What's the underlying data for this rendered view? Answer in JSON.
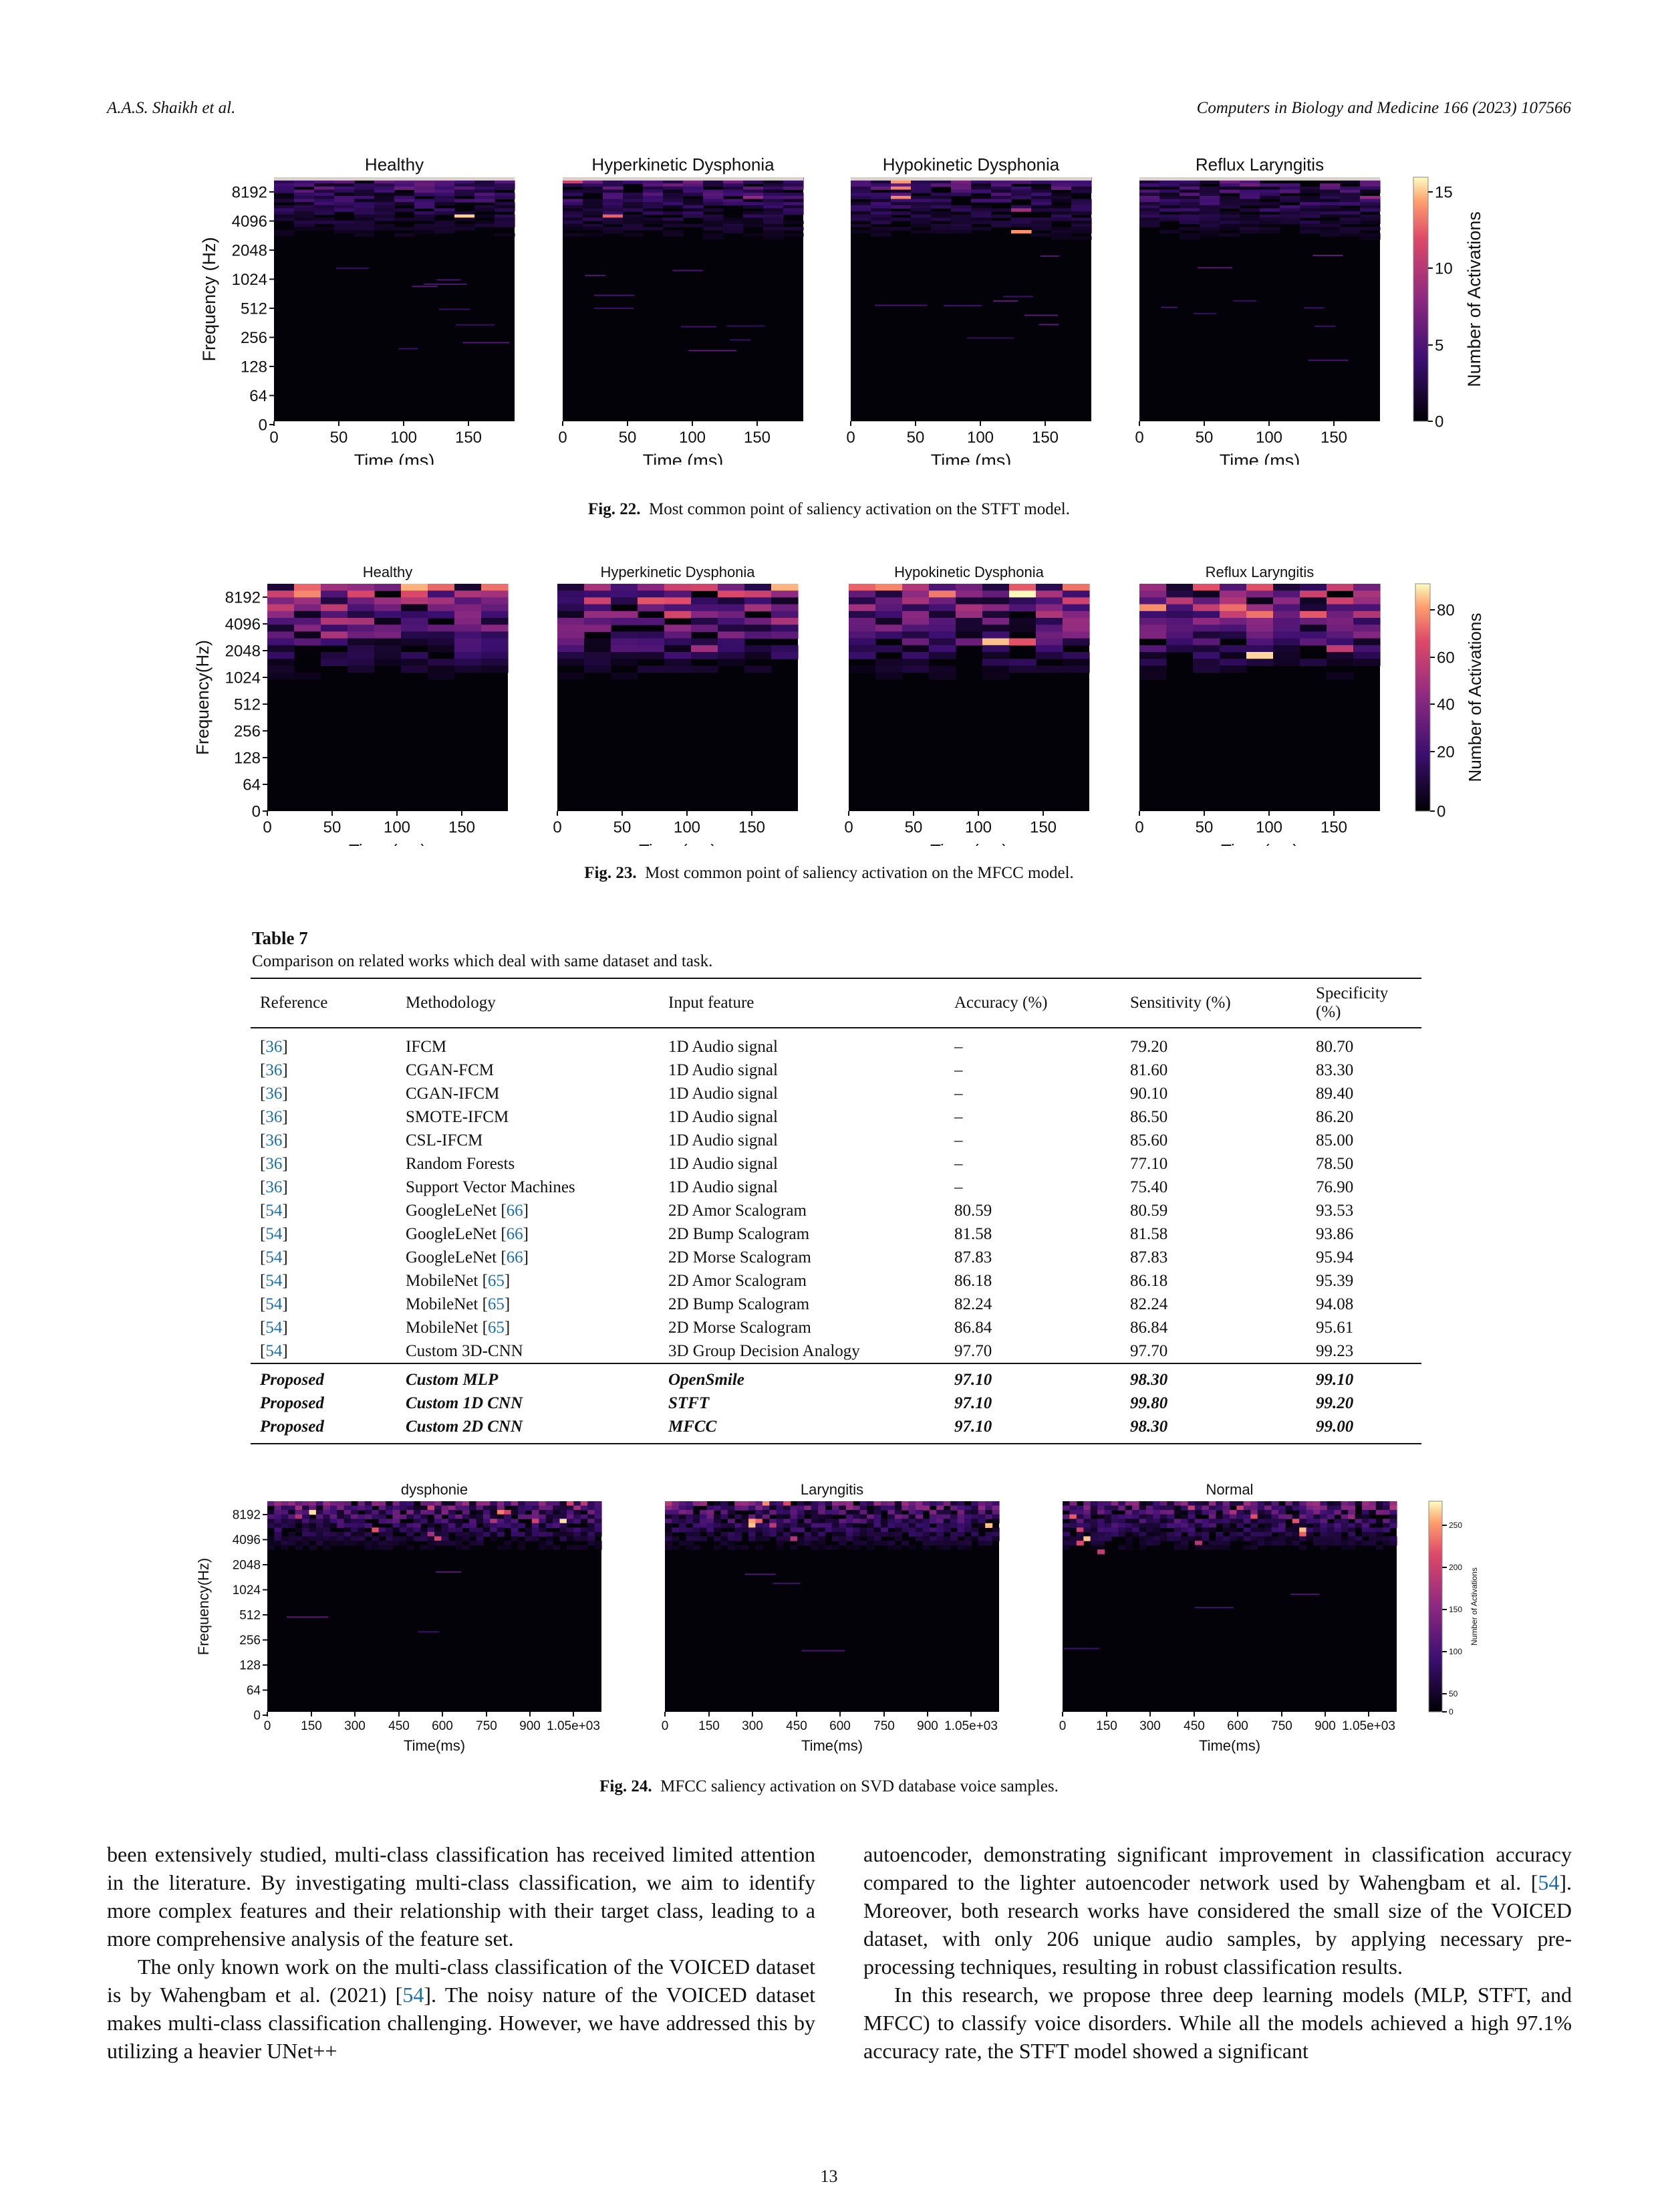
{
  "header": {
    "authors": "A.A.S. Shaikh et al.",
    "journal": "Computers in Biology and Medicine 166 (2023) 107566"
  },
  "fig22": {
    "caption_label": "Fig. 22.",
    "caption_text": "Most common point of saliency activation on the STFT model.",
    "panels": [
      "Healthy",
      "Hyperkinetic Dysphonia",
      "Hypokinetic Dysphonia",
      "Reflux Laryngitis"
    ],
    "ylabel": "Frequency (Hz)",
    "xlabel": "Time (ms)",
    "yticks": [
      "8192",
      "4096",
      "2048",
      "1024",
      "512",
      "256",
      "128",
      "64",
      "0"
    ],
    "xticks": [
      "0",
      "50",
      "100",
      "150"
    ],
    "colorbar_label": "Number of Activations",
    "colorbar_ticks": [
      "15",
      "10",
      "5",
      "0"
    ]
  },
  "fig23": {
    "caption_label": "Fig. 23.",
    "caption_text": "Most common point of saliency activation on the MFCC model.",
    "panels": [
      "Healthy",
      "Hyperkinetic Dysphonia",
      "Hypokinetic Dysphonia",
      "Reflux Laryngitis"
    ],
    "ylabel": "Frequency(Hz)",
    "xlabel": "Time (ms)",
    "yticks": [
      "8192",
      "4096",
      "2048",
      "1024",
      "512",
      "256",
      "128",
      "64",
      "0"
    ],
    "xticks": [
      "0",
      "50",
      "100",
      "150"
    ],
    "colorbar_label": "Number of Activations",
    "colorbar_ticks": [
      "80",
      "60",
      "40",
      "20",
      "0"
    ]
  },
  "fig24": {
    "caption_label": "Fig. 24.",
    "caption_text": "MFCC saliency activation on SVD database voice samples.",
    "panels": [
      "dysphonie",
      "Laryngitis",
      "Normal"
    ],
    "ylabel": "Frequency(Hz)",
    "xlabel": "Time(ms)",
    "yticks": [
      "8192",
      "4096",
      "2048",
      "1024",
      "512",
      "256",
      "128",
      "64",
      "0"
    ],
    "xticks": [
      "0",
      "150",
      "300",
      "450",
      "600",
      "750",
      "900",
      "1.05e+03"
    ],
    "colorbar_label": "Number of Activations",
    "colorbar_ticks": [
      "250",
      "200",
      "150",
      "100",
      "50",
      "0"
    ]
  },
  "table7": {
    "title": "Table 7",
    "subtitle": "Comparison on related works which deal with same dataset and task.",
    "headers": [
      "Reference",
      "Methodology",
      "Input feature",
      "Accuracy (%)",
      "Sensitivity (%)",
      "Specificity (%)"
    ],
    "rows": [
      [
        "36",
        "IFCM",
        "",
        "1D Audio signal",
        "–",
        "79.20",
        "80.70"
      ],
      [
        "36",
        "CGAN-FCM",
        "",
        "1D Audio signal",
        "–",
        "81.60",
        "83.30"
      ],
      [
        "36",
        "CGAN-IFCM",
        "",
        "1D Audio signal",
        "–",
        "90.10",
        "89.40"
      ],
      [
        "36",
        "SMOTE-IFCM",
        "",
        "1D Audio signal",
        "–",
        "86.50",
        "86.20"
      ],
      [
        "36",
        "CSL-IFCM",
        "",
        "1D Audio signal",
        "–",
        "85.60",
        "85.00"
      ],
      [
        "36",
        "Random Forests",
        "",
        "1D Audio signal",
        "–",
        "77.10",
        "78.50"
      ],
      [
        "36",
        "Support Vector Machines",
        "",
        "1D Audio signal",
        "–",
        "75.40",
        "76.90"
      ],
      [
        "54",
        "GoogleLeNet",
        "66",
        "2D Amor Scalogram",
        "80.59",
        "80.59",
        "93.53"
      ],
      [
        "54",
        "GoogleLeNet",
        "66",
        "2D Bump Scalogram",
        "81.58",
        "81.58",
        "93.86"
      ],
      [
        "54",
        "GoogleLeNet",
        "66",
        "2D Morse Scalogram",
        "87.83",
        "87.83",
        "95.94"
      ],
      [
        "54",
        "MobileNet",
        "65",
        "2D Amor Scalogram",
        "86.18",
        "86.18",
        "95.39"
      ],
      [
        "54",
        "MobileNet",
        "65",
        "2D Bump Scalogram",
        "82.24",
        "82.24",
        "94.08"
      ],
      [
        "54",
        "MobileNet",
        "65",
        "2D Morse Scalogram",
        "86.84",
        "86.84",
        "95.61"
      ],
      [
        "54",
        "Custom 3D-CNN",
        "",
        "3D Group Decision Analogy",
        "97.70",
        "97.70",
        "99.23"
      ]
    ],
    "proposed": [
      [
        "Proposed",
        "Custom MLP",
        "OpenSmile",
        "97.10",
        "98.30",
        "99.10"
      ],
      [
        "Proposed",
        "Custom 1D CNN",
        "STFT",
        "97.10",
        "99.80",
        "99.20"
      ],
      [
        "Proposed",
        "Custom 2D CNN",
        "MFCC",
        "97.10",
        "98.30",
        "99.00"
      ]
    ]
  },
  "body": {
    "left_p1": "been extensively studied, multi-class classification has received limited attention in the literature. By investigating multi-class classification, we aim to identify more complex features and their relationship with their target class, leading to a more comprehensive analysis of the feature set.",
    "left_p2a": "The only known work on the multi-class classification of the VOICED dataset is by Wahengbam et al. (2021) [",
    "left_p2_ref": "54",
    "left_p2b": "]. The noisy nature of the VOICED dataset makes multi-class classification challenging. However, we have addressed this by utilizing a heavier UNet++",
    "right_p1a": "autoencoder, demonstrating significant improvement in classification accuracy compared to the lighter autoencoder network used by Wahengbam et al. [",
    "right_p1_ref": "54",
    "right_p1b": "]. Moreover, both research works have considered the small size of the VOICED dataset, with only 206 unique audio samples, by applying necessary pre-processing techniques, resulting in robust classification results.",
    "right_p2": "In this research, we propose three deep learning models (MLP, STFT, and MFCC) to classify voice disorders. While all the models achieved a high 97.1% accuracy rate, the STFT model showed a significant"
  },
  "page_number": "13"
}
